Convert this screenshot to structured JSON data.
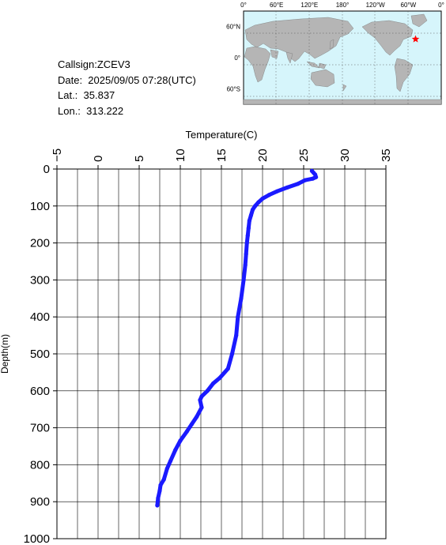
{
  "info": {
    "callsign": "Callsign:ZCEV3",
    "date": "Date:  2025/09/05 07:28(UTC)",
    "lat": "Lat.:  35.837",
    "lon": "Lon.:  313.222"
  },
  "map": {
    "top_labels": [
      "0°",
      "60°E",
      "120°E",
      "180°",
      "120°W",
      "60°W",
      "0°"
    ],
    "left_labels": [
      "60°N",
      "0°",
      "60°S"
    ],
    "marker": {
      "lat": 35.837,
      "lon": 313.222
    },
    "colors": {
      "ocean": "#d6f5fb",
      "land": "#b5b5b5",
      "marker": "#ff0000"
    }
  },
  "chart_data": {
    "type": "line",
    "title": "",
    "xlabel": "Temperature(C)",
    "ylabel": "Depth(m)",
    "xlim": [
      -5,
      35
    ],
    "ylim": [
      1000,
      0
    ],
    "x_ticks": [
      -5,
      0,
      5,
      10,
      15,
      20,
      25,
      30,
      35
    ],
    "y_ticks": [
      0,
      100,
      200,
      300,
      400,
      500,
      600,
      700,
      800,
      900,
      1000
    ],
    "grid": true,
    "series": [
      {
        "color": "#1a1aff",
        "points": [
          [
            26.0,
            5
          ],
          [
            26.2,
            10
          ],
          [
            26.4,
            15
          ],
          [
            26.5,
            22
          ],
          [
            26.1,
            26
          ],
          [
            25.2,
            30
          ],
          [
            24.3,
            40
          ],
          [
            23.0,
            50
          ],
          [
            21.8,
            60
          ],
          [
            20.8,
            70
          ],
          [
            20.0,
            80
          ],
          [
            19.5,
            90
          ],
          [
            19.1,
            100
          ],
          [
            18.8,
            110
          ],
          [
            18.6,
            125
          ],
          [
            18.4,
            140
          ],
          [
            18.3,
            160
          ],
          [
            18.2,
            180
          ],
          [
            18.1,
            200
          ],
          [
            18.0,
            230
          ],
          [
            17.9,
            260
          ],
          [
            17.7,
            300
          ],
          [
            17.4,
            350
          ],
          [
            17.0,
            400
          ],
          [
            16.8,
            450
          ],
          [
            16.3,
            500
          ],
          [
            15.8,
            540
          ],
          [
            14.8,
            565
          ],
          [
            14.0,
            580
          ],
          [
            13.3,
            600
          ],
          [
            12.6,
            615
          ],
          [
            12.4,
            625
          ],
          [
            12.6,
            645
          ],
          [
            12.0,
            670
          ],
          [
            11.4,
            690
          ],
          [
            10.8,
            710
          ],
          [
            10.0,
            735
          ],
          [
            9.4,
            760
          ],
          [
            8.8,
            790
          ],
          [
            8.4,
            810
          ],
          [
            8.0,
            840
          ],
          [
            7.6,
            855
          ],
          [
            7.5,
            870
          ],
          [
            7.3,
            890
          ],
          [
            7.2,
            910
          ]
        ]
      }
    ]
  }
}
